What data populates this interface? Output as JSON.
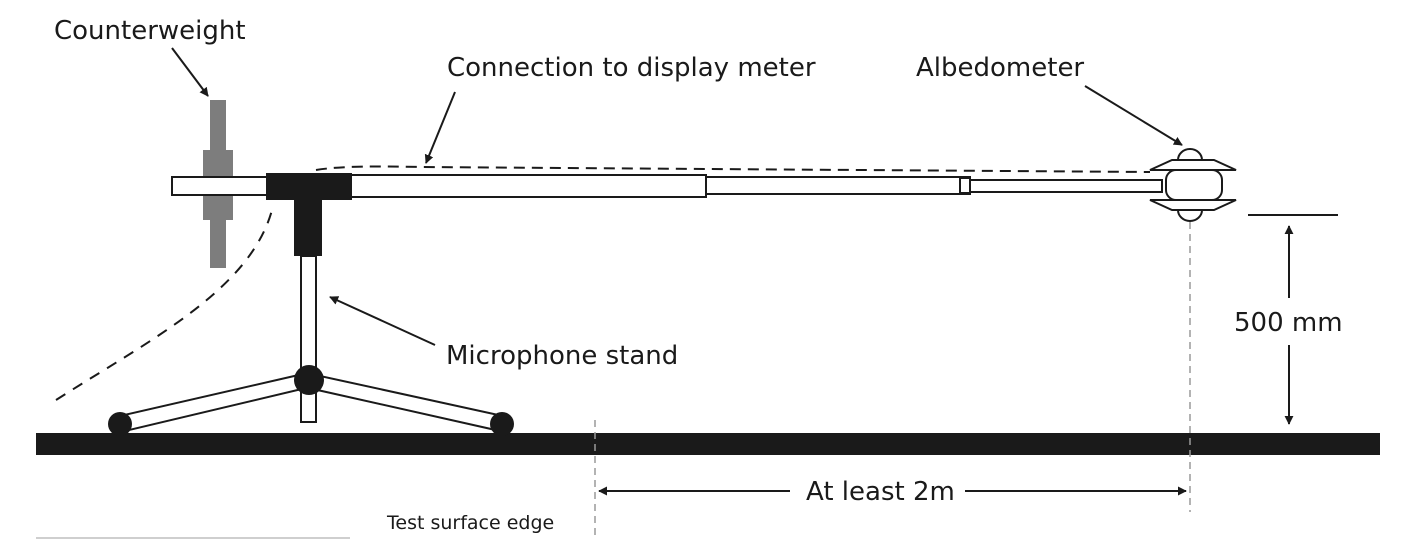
{
  "diagram": {
    "labels": {
      "counterweight": "Counterweight",
      "connection": "Connection to display meter",
      "albedometer": "Albedometer",
      "microphone_stand": "Microphone stand",
      "height": "500 mm",
      "distance": "At least 2m",
      "edge": "Test surface edge"
    }
  }
}
